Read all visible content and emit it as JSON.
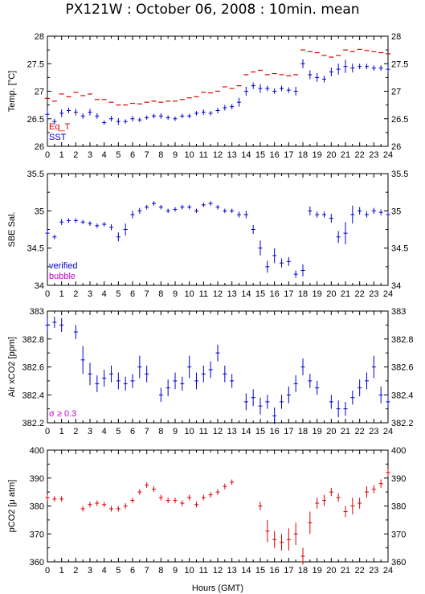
{
  "title": "PX121W : October 06, 2008 : 10min. mean",
  "xlabel": "Hours (GMT)",
  "colors": {
    "red": "#dd0000",
    "blue": "#0000cc",
    "magenta": "#cc00cc",
    "axis": "#000000"
  },
  "chart_data": [
    {
      "type": "scatter",
      "ylabel": "Temp. [°C]",
      "xlim": [
        0,
        24
      ],
      "ylim": [
        26,
        28
      ],
      "x_ticks": [
        0,
        1,
        2,
        3,
        4,
        5,
        6,
        7,
        8,
        9,
        10,
        11,
        12,
        13,
        14,
        15,
        16,
        17,
        18,
        19,
        20,
        21,
        22,
        23,
        24
      ],
      "y_ticks": [
        "26",
        "26.5",
        "27",
        "27.5",
        "28"
      ],
      "legend": {
        "placement": "bottom-left",
        "entries": [
          {
            "text": "Eq_T",
            "color": "#dd0000"
          },
          {
            "text": "SST",
            "color": "#0000cc"
          }
        ]
      },
      "series": [
        {
          "name": "Eq_T",
          "color": "#dd0000",
          "style": "dash",
          "x": [
            0.0,
            0.5,
            1.0,
            1.5,
            2.0,
            2.5,
            3.0,
            3.5,
            4.0,
            4.5,
            5.0,
            5.5,
            6.0,
            6.5,
            7.0,
            7.5,
            8.0,
            8.5,
            9.0,
            9.5,
            10.0,
            10.5,
            11.0,
            11.5,
            12.0,
            12.5,
            13.0,
            13.5,
            14.0,
            14.5,
            15.0,
            15.5,
            16.0,
            16.5,
            17.0,
            17.5,
            18.0,
            18.5,
            19.0,
            19.5,
            20.0,
            20.5,
            21.0,
            21.5,
            22.0,
            22.5,
            23.0,
            23.5,
            24.0
          ],
          "y": [
            26.87,
            26.82,
            26.95,
            26.9,
            26.98,
            26.92,
            26.95,
            26.85,
            26.85,
            26.8,
            26.75,
            26.75,
            26.78,
            26.77,
            26.8,
            26.82,
            26.8,
            26.82,
            26.82,
            26.85,
            26.88,
            26.9,
            26.98,
            26.97,
            27.0,
            27.08,
            27.05,
            27.1,
            27.3,
            27.35,
            27.38,
            27.3,
            27.32,
            27.3,
            27.28,
            27.3,
            27.75,
            27.72,
            27.7,
            27.65,
            27.62,
            27.65,
            27.75,
            27.72,
            27.76,
            27.74,
            27.72,
            27.7,
            27.68
          ]
        },
        {
          "name": "SST",
          "color": "#0000cc",
          "style": "errbar",
          "x": [
            0.0,
            0.5,
            1.0,
            1.5,
            2.0,
            2.5,
            3.0,
            3.5,
            4.0,
            4.5,
            5.0,
            5.5,
            6.0,
            6.5,
            7.0,
            7.5,
            8.0,
            8.5,
            9.0,
            9.5,
            10.0,
            10.5,
            11.0,
            11.5,
            12.0,
            12.5,
            13.0,
            13.5,
            14.0,
            14.5,
            15.0,
            15.5,
            16.0,
            16.5,
            17.0,
            17.5,
            18.0,
            18.5,
            19.0,
            19.5,
            20.0,
            20.5,
            21.0,
            21.5,
            22.0,
            22.5,
            23.0,
            23.5,
            24.0
          ],
          "y": [
            26.58,
            26.45,
            26.6,
            26.65,
            26.62,
            26.55,
            26.62,
            26.55,
            26.43,
            26.5,
            26.45,
            26.45,
            26.5,
            26.48,
            26.52,
            26.55,
            26.55,
            26.52,
            26.5,
            26.55,
            26.55,
            26.6,
            26.62,
            26.6,
            26.65,
            26.7,
            26.72,
            26.8,
            27.0,
            27.1,
            27.05,
            27.05,
            27.0,
            27.05,
            27.02,
            27.0,
            27.5,
            27.3,
            27.25,
            27.22,
            27.35,
            27.4,
            27.45,
            27.42,
            27.45,
            27.45,
            27.42,
            27.42,
            27.4
          ],
          "err": [
            0.08,
            0.05,
            0.07,
            0.05,
            0.06,
            0.05,
            0.06,
            0.05,
            0.04,
            0.05,
            0.06,
            0.04,
            0.05,
            0.04,
            0.04,
            0.04,
            0.05,
            0.04,
            0.04,
            0.04,
            0.04,
            0.04,
            0.05,
            0.04,
            0.05,
            0.05,
            0.05,
            0.08,
            0.08,
            0.06,
            0.08,
            0.05,
            0.05,
            0.05,
            0.05,
            0.08,
            0.08,
            0.08,
            0.08,
            0.06,
            0.08,
            0.1,
            0.12,
            0.08,
            0.05,
            0.05,
            0.05,
            0.05,
            0.05
          ]
        }
      ]
    },
    {
      "type": "scatter",
      "ylabel": "SBE Sal.",
      "xlim": [
        0,
        24
      ],
      "ylim": [
        34,
        35.5
      ],
      "x_ticks": [
        0,
        1,
        2,
        3,
        4,
        5,
        6,
        7,
        8,
        9,
        10,
        11,
        12,
        13,
        14,
        15,
        16,
        17,
        18,
        19,
        20,
        21,
        22,
        23,
        24
      ],
      "y_ticks": [
        "34",
        "34.5",
        "35",
        "35.5"
      ],
      "legend": {
        "placement": "bottom-left",
        "entries": [
          {
            "text": "verified",
            "color": "#0000cc"
          },
          {
            "text": "bubble",
            "color": "#cc00cc"
          }
        ]
      },
      "series": [
        {
          "name": "verified",
          "color": "#0000cc",
          "style": "errbar",
          "x": [
            0.0,
            0.5,
            1.0,
            1.5,
            2.0,
            2.5,
            3.0,
            3.5,
            4.0,
            4.5,
            5.0,
            5.5,
            6.0,
            6.5,
            7.0,
            7.5,
            8.0,
            8.5,
            9.0,
            9.5,
            10.0,
            10.5,
            11.0,
            11.5,
            12.0,
            12.5,
            13.0,
            13.5,
            14.0,
            14.5,
            15.0,
            15.5,
            16.0,
            16.5,
            17.0,
            17.5,
            18.0,
            18.5,
            19.0,
            19.5,
            20.0,
            20.5,
            21.0,
            21.5,
            22.0,
            22.5,
            23.0,
            23.5,
            24.0
          ],
          "y": [
            34.7,
            34.65,
            34.85,
            34.87,
            34.87,
            34.85,
            34.83,
            34.8,
            34.82,
            34.78,
            34.65,
            34.75,
            34.95,
            35.0,
            35.05,
            35.1,
            35.05,
            35.0,
            35.02,
            35.05,
            35.05,
            35.0,
            35.08,
            35.1,
            35.05,
            35.0,
            35.0,
            34.95,
            34.95,
            34.75,
            34.5,
            34.25,
            34.4,
            34.3,
            34.32,
            34.15,
            34.2,
            35.0,
            34.95,
            34.95,
            34.9,
            34.65,
            34.7,
            34.95,
            35.0,
            34.95,
            35.0,
            34.98,
            34.95
          ],
          "err": [
            0.04,
            0.03,
            0.04,
            0.03,
            0.03,
            0.03,
            0.03,
            0.03,
            0.03,
            0.04,
            0.06,
            0.08,
            0.05,
            0.04,
            0.03,
            0.03,
            0.03,
            0.03,
            0.03,
            0.03,
            0.03,
            0.03,
            0.03,
            0.03,
            0.03,
            0.03,
            0.03,
            0.04,
            0.05,
            0.06,
            0.1,
            0.08,
            0.1,
            0.06,
            0.06,
            0.05,
            0.08,
            0.06,
            0.04,
            0.04,
            0.06,
            0.08,
            0.15,
            0.12,
            0.05,
            0.04,
            0.04,
            0.04,
            0.04
          ]
        }
      ]
    },
    {
      "type": "scatter",
      "ylabel": "Air xCO2 [ppm]",
      "xlim": [
        0,
        24
      ],
      "ylim": [
        382.2,
        383
      ],
      "x_ticks": [
        0,
        1,
        2,
        3,
        4,
        5,
        6,
        7,
        8,
        9,
        10,
        11,
        12,
        13,
        14,
        15,
        16,
        17,
        18,
        19,
        20,
        21,
        22,
        23,
        24
      ],
      "y_ticks": [
        "382.2",
        "382.4",
        "382.6",
        "382.8",
        "383"
      ],
      "legend": {
        "placement": "bottom-left",
        "entries": [
          {
            "text": "σ ≥ 0.3",
            "color": "#cc00cc"
          }
        ]
      },
      "series": [
        {
          "name": "",
          "color": "#0000cc",
          "style": "errbar",
          "x": [
            0.0,
            0.5,
            1.0,
            2.0,
            2.5,
            3.0,
            3.5,
            4.0,
            4.5,
            5.0,
            5.5,
            6.0,
            6.5,
            7.0,
            8.0,
            8.5,
            9.0,
            9.5,
            10.0,
            10.5,
            11.0,
            11.5,
            12.0,
            12.5,
            13.0,
            14.0,
            14.5,
            15.0,
            15.5,
            16.0,
            16.5,
            17.0,
            17.5,
            18.0,
            18.5,
            19.0,
            20.0,
            20.5,
            21.0,
            21.5,
            22.0,
            22.5,
            23.0,
            23.5,
            24.0
          ],
          "y": [
            382.9,
            382.92,
            382.9,
            382.85,
            382.65,
            382.55,
            382.48,
            382.52,
            382.55,
            382.5,
            382.48,
            382.5,
            382.6,
            382.55,
            382.4,
            382.45,
            382.5,
            382.48,
            382.6,
            382.5,
            382.55,
            382.58,
            382.7,
            382.55,
            382.5,
            382.35,
            382.38,
            382.32,
            382.35,
            382.25,
            382.35,
            382.4,
            382.48,
            382.6,
            382.5,
            382.45,
            382.35,
            382.3,
            382.3,
            382.38,
            382.45,
            382.5,
            382.6,
            382.4,
            382.35
          ],
          "err": [
            0.05,
            0.04,
            0.05,
            0.05,
            0.1,
            0.08,
            0.06,
            0.06,
            0.06,
            0.06,
            0.05,
            0.05,
            0.08,
            0.06,
            0.05,
            0.06,
            0.06,
            0.05,
            0.08,
            0.06,
            0.06,
            0.06,
            0.06,
            0.06,
            0.05,
            0.06,
            0.06,
            0.06,
            0.05,
            0.06,
            0.05,
            0.06,
            0.06,
            0.06,
            0.05,
            0.05,
            0.05,
            0.06,
            0.05,
            0.05,
            0.06,
            0.06,
            0.08,
            0.06,
            0.05
          ]
        }
      ]
    },
    {
      "type": "scatter",
      "ylabel": "pCO2 [μ atm]",
      "xlim": [
        0,
        24
      ],
      "ylim": [
        360,
        400
      ],
      "x_ticks": [
        0,
        1,
        2,
        3,
        4,
        5,
        6,
        7,
        8,
        9,
        10,
        11,
        12,
        13,
        14,
        15,
        16,
        17,
        18,
        19,
        20,
        21,
        22,
        23,
        24
      ],
      "y_ticks": [
        "360",
        "370",
        "380",
        "390",
        "400"
      ],
      "series": [
        {
          "name": "",
          "color": "#dd0000",
          "style": "errbar",
          "x": [
            0.0,
            0.5,
            1.0,
            2.5,
            3.0,
            3.5,
            4.0,
            4.5,
            5.0,
            5.5,
            6.0,
            6.5,
            7.0,
            7.5,
            8.0,
            8.5,
            9.0,
            9.5,
            10.0,
            10.5,
            11.0,
            11.5,
            12.0,
            12.5,
            13.0,
            15.0,
            15.5,
            16.0,
            16.5,
            17.0,
            17.5,
            18.0,
            18.5,
            19.0,
            19.5,
            20.0,
            20.5,
            21.0,
            21.5,
            22.0,
            22.5,
            23.0,
            23.5,
            24.0
          ],
          "y": [
            383,
            382.5,
            382.5,
            379,
            380.5,
            381,
            380.5,
            379,
            379,
            380,
            382,
            385,
            387.5,
            386,
            383,
            382,
            382,
            381,
            383,
            380.5,
            383,
            384,
            385,
            387,
            388.5,
            380,
            371,
            368,
            367,
            368,
            370,
            362,
            374,
            381,
            382,
            385,
            383,
            378,
            380,
            381,
            385,
            386,
            388,
            392
          ],
          "err": [
            1,
            1,
            1,
            1,
            1,
            1,
            1,
            1,
            1,
            1,
            1,
            1,
            1,
            1,
            1,
            1,
            1,
            1,
            1,
            1,
            1,
            1,
            1,
            1,
            1,
            1.5,
            4,
            3,
            3,
            4,
            4,
            3,
            4,
            2,
            2,
            1.5,
            1.5,
            2,
            3,
            2,
            2,
            1.5,
            1.5,
            1.5
          ]
        }
      ]
    }
  ]
}
